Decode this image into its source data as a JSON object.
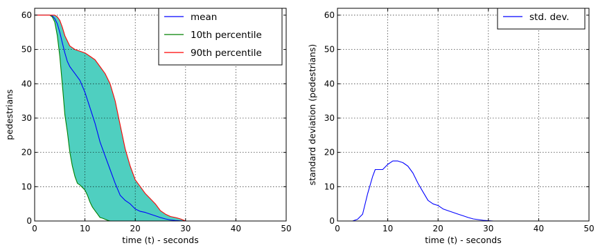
{
  "chart_data": [
    {
      "type": "line",
      "title": "",
      "xlabel": "time (t) - seconds",
      "ylabel": "pedestrians",
      "xlim": [
        0,
        50
      ],
      "ylim": [
        0,
        62
      ],
      "xticks": [
        0,
        10,
        20,
        30,
        40,
        50
      ],
      "yticks": [
        0,
        10,
        20,
        30,
        40,
        50,
        60
      ],
      "grid": true,
      "legend_position": "top-right",
      "fill_between": {
        "lower": "10th percentile",
        "upper": "90th percentile",
        "color": "#4fcfc0"
      },
      "series": [
        {
          "name": "mean",
          "color": "#0000ff",
          "x": [
            0,
            3,
            3.5,
            4,
            4.5,
            5,
            5.5,
            6,
            6.5,
            7,
            7.5,
            8,
            9,
            10,
            11,
            12,
            13,
            14,
            15,
            16,
            17,
            18,
            19,
            20,
            21,
            22,
            23,
            24,
            25,
            26,
            27,
            28,
            29,
            30,
            50
          ],
          "y": [
            60,
            60,
            59.8,
            59,
            57.5,
            55,
            52,
            49,
            46.5,
            45,
            44,
            43,
            41,
            37.5,
            33,
            28.5,
            23,
            19,
            15,
            11,
            7.5,
            6,
            5,
            3.5,
            2.8,
            2.5,
            2,
            1.5,
            1,
            0.6,
            0.3,
            0.15,
            0.05,
            0,
            0
          ]
        },
        {
          "name": "10th percentile",
          "color": "#008000",
          "x": [
            0,
            3,
            3.5,
            4,
            4.5,
            5,
            5.3,
            5.6,
            6,
            6.5,
            7,
            7.5,
            8,
            8.5,
            9,
            10,
            10.5,
            11,
            11.5,
            12,
            12.5,
            13,
            13.5,
            14,
            14.5,
            15,
            50
          ],
          "y": [
            60,
            60,
            59.5,
            58,
            54,
            48,
            43,
            38,
            31,
            26,
            20,
            16,
            13,
            11,
            10.5,
            9,
            7.5,
            5.5,
            4,
            3,
            2,
            1,
            0.8,
            0.5,
            0.2,
            0,
            0
          ]
        },
        {
          "name": "90th percentile",
          "color": "#ff0000",
          "x": [
            0,
            3,
            3.5,
            4,
            4.5,
            5,
            5.5,
            6,
            7,
            8,
            9,
            10,
            11,
            12,
            13,
            14,
            15,
            16,
            17,
            18,
            19,
            20,
            21,
            22,
            23,
            24,
            25,
            26,
            27,
            28,
            29,
            30,
            50
          ],
          "y": [
            60,
            60,
            60,
            60,
            59.5,
            58.5,
            56.5,
            54,
            51,
            50,
            49.5,
            49,
            48,
            47,
            45,
            43,
            40,
            35,
            28,
            21,
            16,
            12,
            10,
            8,
            6.5,
            5,
            3,
            2,
            1.3,
            1,
            0.6,
            0,
            0
          ]
        }
      ]
    },
    {
      "type": "line",
      "title": "",
      "xlabel": "time (t) - seconds",
      "ylabel": "standard deviation (pedestrians)",
      "xlim": [
        0,
        50
      ],
      "ylim": [
        0,
        62
      ],
      "xticks": [
        0,
        10,
        20,
        30,
        40,
        50
      ],
      "yticks": [
        0,
        10,
        20,
        30,
        40,
        50,
        60
      ],
      "grid": true,
      "legend_position": "top-right",
      "series": [
        {
          "name": "std. dev.",
          "color": "#0000ff",
          "x": [
            0,
            3,
            4,
            5,
            6,
            7,
            7.5,
            8,
            9,
            10,
            11,
            12,
            13,
            14,
            15,
            16,
            17,
            18,
            19,
            20,
            21,
            22,
            23,
            24,
            25,
            26,
            27,
            28,
            29,
            30,
            31,
            50
          ],
          "y": [
            0,
            0,
            0.5,
            2,
            8,
            13,
            15,
            15,
            15,
            16.5,
            17.5,
            17.5,
            17,
            16,
            14,
            11,
            8.5,
            6,
            5,
            4.5,
            3.5,
            3,
            2.5,
            2,
            1.5,
            1,
            0.6,
            0.4,
            0.2,
            0.1,
            0,
            0
          ]
        }
      ]
    }
  ]
}
